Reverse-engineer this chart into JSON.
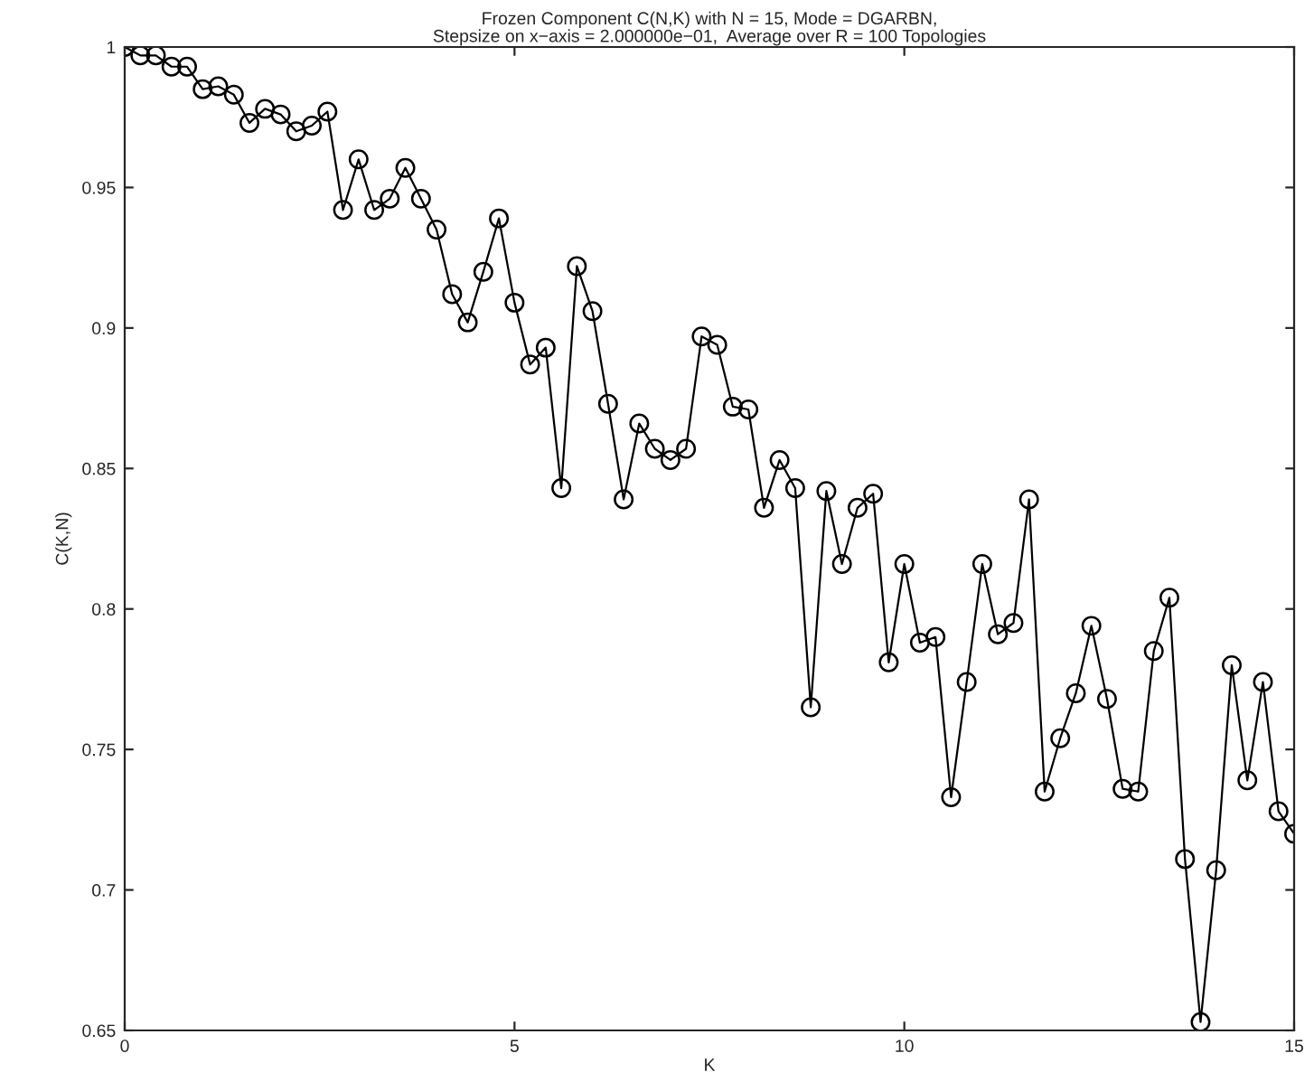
{
  "chart_data": {
    "type": "line",
    "title": "Frozen Component C(N,K) with N = 15, Mode = DGARBN,\nStepsize on x−axis = 2.000000e−01,  Average over R = 100 Topologies",
    "xlabel": "K",
    "ylabel": "C(K,N)",
    "x": [
      0,
      0.2,
      0.4,
      0.6,
      0.8,
      1.0,
      1.2,
      1.4,
      1.6,
      1.8,
      2.0,
      2.2,
      2.4,
      2.6,
      2.8,
      3.0,
      3.2,
      3.4,
      3.6,
      3.8,
      4.0,
      4.2,
      4.4,
      4.6,
      4.8,
      5.0,
      5.2,
      5.4,
      5.6,
      5.8,
      6.0,
      6.2,
      6.4,
      6.6,
      6.8,
      7.0,
      7.2,
      7.4,
      7.6,
      7.8,
      8.0,
      8.2,
      8.4,
      8.6,
      8.8,
      9.0,
      9.2,
      9.4,
      9.6,
      9.8,
      10.0,
      10.2,
      10.4,
      10.6,
      10.8,
      11.0,
      11.2,
      11.4,
      11.6,
      11.8,
      12.0,
      12.2,
      12.4,
      12.6,
      12.8,
      13.0,
      13.2,
      13.4,
      13.6,
      13.8,
      14.0,
      14.2,
      14.4,
      14.6,
      14.8,
      15.0
    ],
    "series": [
      {
        "color": "#000000",
        "values": [
          1.0,
          0.997,
          0.997,
          0.993,
          0.993,
          0.985,
          0.986,
          0.983,
          0.973,
          0.978,
          0.976,
          0.97,
          0.972,
          0.977,
          0.942,
          0.96,
          0.942,
          0.946,
          0.957,
          0.946,
          0.935,
          0.912,
          0.902,
          0.92,
          0.939,
          0.909,
          0.887,
          0.893,
          0.843,
          0.922,
          0.906,
          0.873,
          0.839,
          0.866,
          0.857,
          0.853,
          0.857,
          0.897,
          0.894,
          0.872,
          0.871,
          0.836,
          0.853,
          0.843,
          0.765,
          0.842,
          0.816,
          0.836,
          0.841,
          0.781,
          0.816,
          0.788,
          0.79,
          0.733,
          0.774,
          0.816,
          0.791,
          0.795,
          0.839,
          0.735,
          0.754,
          0.77,
          0.794,
          0.768,
          0.736,
          0.735,
          0.785,
          0.804,
          0.711,
          0.653,
          0.707,
          0.78,
          0.739,
          0.774,
          0.728,
          0.72
        ]
      }
    ],
    "xlim": [
      0,
      15
    ],
    "xticks": [
      0,
      5,
      10,
      15
    ],
    "ylim": [
      0.65,
      1
    ],
    "yticks": [
      0.65,
      0.7,
      0.75,
      0.8,
      0.85,
      0.9,
      0.95,
      1
    ],
    "marker": "circle",
    "line_style": "solid",
    "grid": false,
    "legend": false
  }
}
